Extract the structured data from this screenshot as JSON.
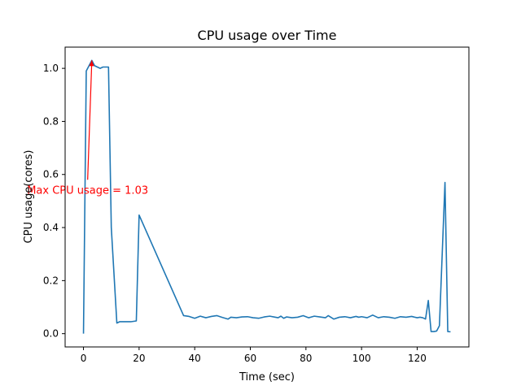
{
  "chart_data": {
    "type": "line",
    "title": "CPU usage over Time",
    "xlabel": "Time (sec)",
    "ylabel": "CPU usage(cores)",
    "xlim": [
      -6.6,
      138.6
    ],
    "ylim": [
      -0.05,
      1.08
    ],
    "x_ticks": [
      0,
      20,
      40,
      60,
      80,
      100,
      120
    ],
    "x_tick_labels": [
      "0",
      "20",
      "40",
      "60",
      "80",
      "100",
      "120"
    ],
    "y_ticks": [
      0.0,
      0.2,
      0.4,
      0.6,
      0.8,
      1.0
    ],
    "y_tick_labels": [
      "0.0",
      "0.2",
      "0.4",
      "0.6",
      "0.8",
      "1.0"
    ],
    "grid": false,
    "series": [
      {
        "color": "#1f77b4",
        "x": [
          0,
          1,
          3,
          4,
          5,
          6,
          7,
          9,
          10,
          12,
          13,
          15,
          17,
          19,
          20,
          36,
          38,
          40,
          42,
          44,
          46,
          48,
          50,
          52,
          53,
          55,
          57,
          59,
          61,
          63,
          65,
          67,
          69,
          70,
          71,
          72,
          73,
          75,
          77,
          79,
          81,
          83,
          85,
          87,
          88,
          90,
          92,
          94,
          96,
          98,
          99,
          100,
          102,
          104,
          106,
          108,
          110,
          112,
          114,
          116,
          118,
          120,
          121,
          122,
          123,
          124,
          125,
          126,
          127,
          128,
          130,
          131,
          132
        ],
        "y": [
          0.0,
          0.99,
          1.03,
          1.01,
          1.005,
          1.0,
          1.005,
          1.005,
          0.4,
          0.04,
          0.045,
          0.045,
          0.045,
          0.048,
          0.447,
          0.068,
          0.065,
          0.058,
          0.066,
          0.06,
          0.065,
          0.068,
          0.061,
          0.055,
          0.062,
          0.06,
          0.063,
          0.064,
          0.06,
          0.058,
          0.063,
          0.066,
          0.062,
          0.06,
          0.066,
          0.058,
          0.063,
          0.06,
          0.062,
          0.068,
          0.06,
          0.066,
          0.063,
          0.06,
          0.068,
          0.055,
          0.062,
          0.064,
          0.06,
          0.065,
          0.062,
          0.064,
          0.06,
          0.07,
          0.06,
          0.064,
          0.062,
          0.058,
          0.064,
          0.062,
          0.065,
          0.06,
          0.062,
          0.06,
          0.055,
          0.125,
          0.008,
          0.008,
          0.01,
          0.03,
          0.57,
          0.008,
          0.007
        ]
      }
    ],
    "annotation": {
      "text": "Max CPU usage = 1.03",
      "color": "#ff0000",
      "point": [
        3,
        1.03
      ],
      "text_at": [
        1.5,
        0.58
      ]
    }
  }
}
